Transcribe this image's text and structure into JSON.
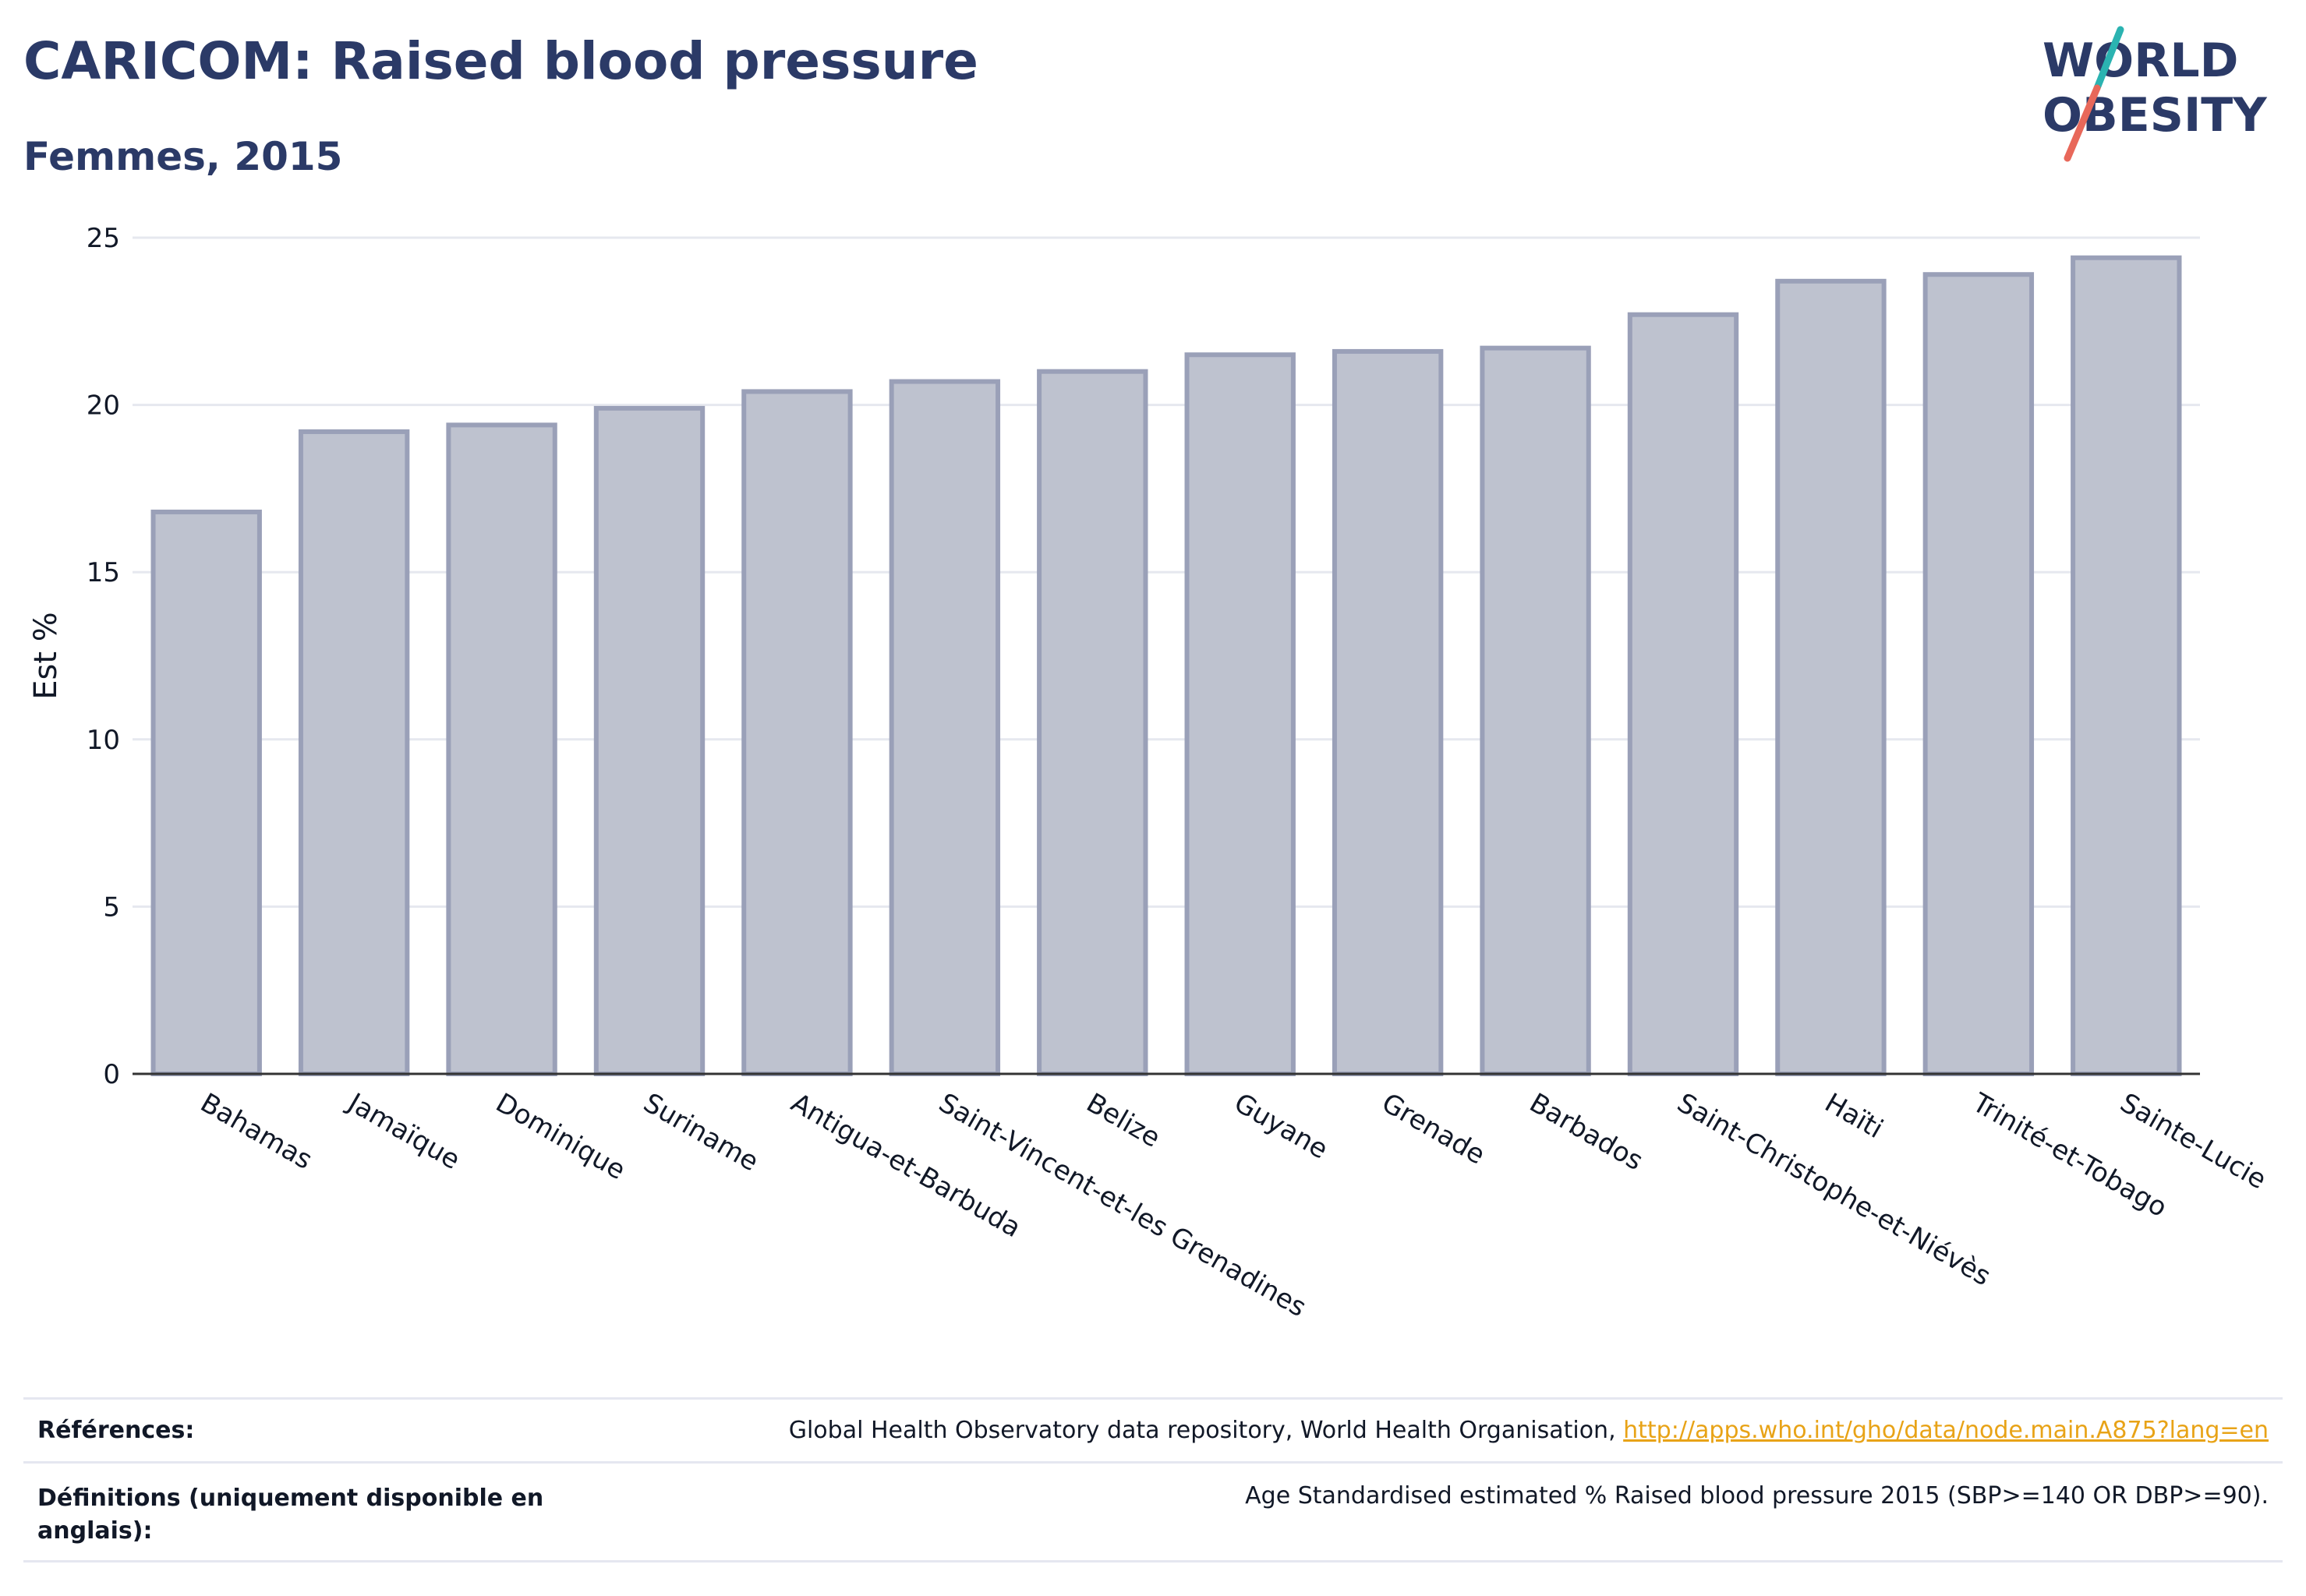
{
  "header": {
    "title": "CARICOM: Raised blood pressure",
    "subtitle": "Femmes, 2015"
  },
  "logo": {
    "line1": "WORLD",
    "line2": "OBESITY",
    "colors": {
      "text": "#2b3a67",
      "slash_top": "#2bb3b1",
      "slash_bottom": "#e8685a"
    }
  },
  "chart_data": {
    "type": "bar",
    "ylabel": "Est %",
    "xlabel": "",
    "ylim": [
      0,
      25
    ],
    "yticks": [
      0,
      5,
      10,
      15,
      20,
      25
    ],
    "grid": true,
    "categories": [
      "Bahamas",
      "Jamaïque",
      "Dominique",
      "Suriname",
      "Antigua-et-Barbuda",
      "Saint-Vincent-et-les Grenadines",
      "Belize",
      "Guyane",
      "Grenade",
      "Barbados",
      "Saint-Christophe-et-Niévès",
      "Haïti",
      "Trinité-et-Tobago",
      "Sainte-Lucie"
    ],
    "values": [
      16.8,
      19.2,
      19.4,
      19.9,
      20.4,
      20.7,
      21.0,
      21.5,
      21.6,
      21.7,
      22.7,
      23.7,
      23.9,
      24.4
    ],
    "colors": {
      "bar_fill": "#bec2cf",
      "bar_stroke": "#9aa0b8",
      "axis": "#333333",
      "grid": "#e6e8ef"
    }
  },
  "footer": {
    "references_label": "Références:",
    "references_text": "Global Health Observatory data repository, World Health Organisation, ",
    "references_link": "http://apps.who.int/gho/data/node.main.A875?lang=en",
    "definitions_label": "Définitions (uniquement disponible en anglais):",
    "definitions_text": "Age Standardised estimated % Raised blood pressure 2015 (SBP>=140 OR DBP>=90)."
  }
}
